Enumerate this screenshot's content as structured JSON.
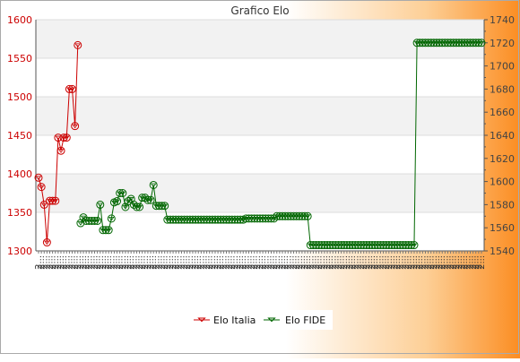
{
  "chart_data": {
    "type": "line",
    "title": "Grafico Elo",
    "left_axis": {
      "ylim": [
        1300,
        1600
      ],
      "ticks": [
        1300,
        1350,
        1400,
        1450,
        1500,
        1550,
        1600
      ],
      "color": "#cc0000"
    },
    "right_axis": {
      "ylim": [
        1540,
        1740
      ],
      "ticks": [
        1540,
        1560,
        1580,
        1600,
        1620,
        1640,
        1660,
        1680,
        1700,
        1720,
        1740
      ],
      "color": "#444444"
    },
    "x_tick_text": "2...",
    "grid": true,
    "legend_position": "bottom",
    "series": [
      {
        "name": "Elo Italia",
        "axis": "left",
        "color": "#cc0000",
        "values": [
          1395,
          1383,
          1360,
          1311,
          1365,
          1365,
          1365,
          1447,
          1430,
          1447,
          1447,
          1510,
          1510,
          1462,
          1567
        ]
      },
      {
        "name": "Elo FIDE",
        "axis": "right",
        "color": "#006600",
        "start_index": 15,
        "values": [
          1564,
          1569,
          1566,
          1566,
          1566,
          1566,
          1566,
          1580,
          1558,
          1558,
          1558,
          1568,
          1582,
          1583,
          1590,
          1590,
          1578,
          1583,
          1585,
          1580,
          1578,
          1578,
          1586,
          1586,
          1584,
          1584,
          1597,
          1579,
          1579,
          1579,
          1579,
          1567,
          1567,
          1567,
          1567,
          1567,
          1567,
          1567,
          1567,
          1567,
          1567,
          1567,
          1567,
          1567,
          1567,
          1567,
          1567,
          1567,
          1567,
          1567,
          1567,
          1567,
          1567,
          1567,
          1567,
          1567,
          1567,
          1567,
          1567,
          1568,
          1568,
          1568,
          1568,
          1568,
          1568,
          1568,
          1568,
          1568,
          1568,
          1568,
          1570,
          1570,
          1570,
          1570,
          1570,
          1570,
          1570,
          1570,
          1570,
          1570,
          1570,
          1570,
          1545,
          1545,
          1545,
          1545,
          1545,
          1545,
          1545,
          1545,
          1545,
          1545,
          1545,
          1545,
          1545,
          1545,
          1545,
          1545,
          1545,
          1545,
          1545,
          1545,
          1545,
          1545,
          1545,
          1545,
          1545,
          1545,
          1545,
          1545,
          1545,
          1545,
          1545,
          1545,
          1545,
          1545,
          1545,
          1545,
          1545,
          1545,
          1720,
          1720,
          1720,
          1720,
          1720,
          1720,
          1720,
          1720,
          1720,
          1720,
          1720,
          1720,
          1720,
          1720,
          1720,
          1720,
          1720,
          1720,
          1720,
          1720,
          1720,
          1720,
          1720,
          1720
        ]
      }
    ]
  }
}
